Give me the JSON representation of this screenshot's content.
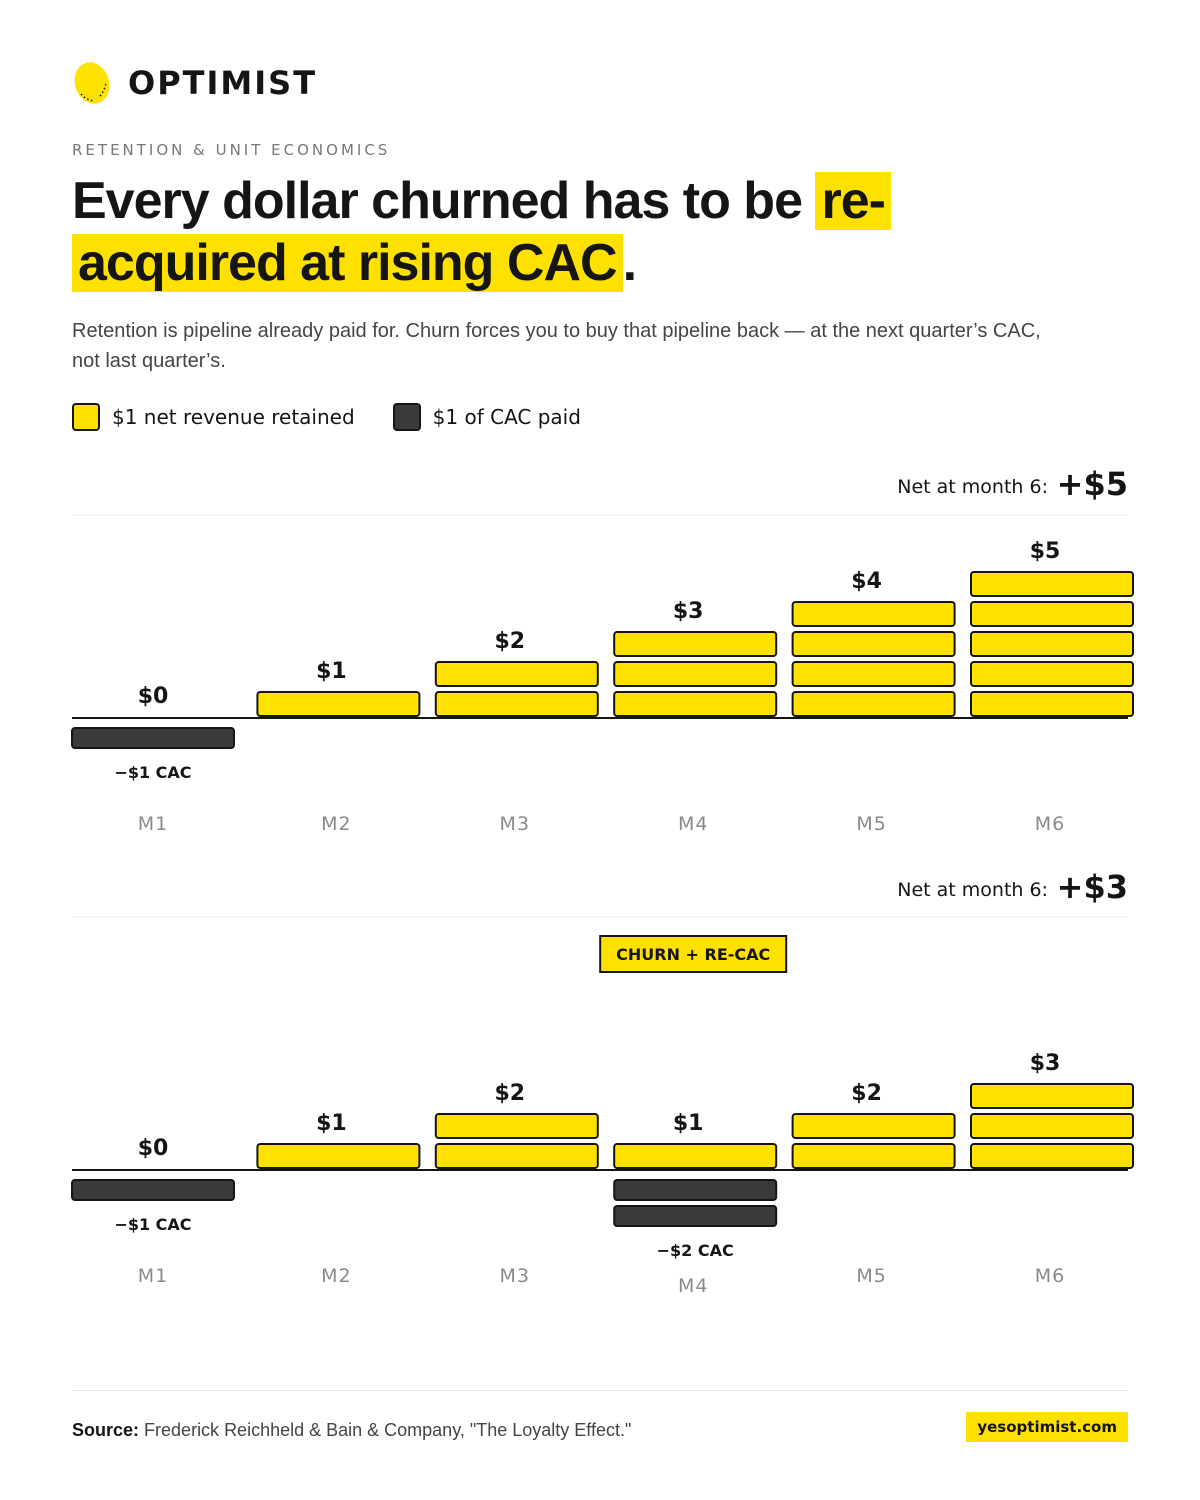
{
  "brand": {
    "name": "OPTIMIST",
    "logo_icon": "lemon-icon"
  },
  "eyebrow": "RETENTION & UNIT ECONOMICS",
  "headline": {
    "part1": "Every dollar churned has to be ",
    "highlight1": "re-",
    "highlight2": "acquired at rising CAC",
    "part2": "."
  },
  "subhead": "Retention is pipeline already paid for. Churn forces you to buy that pipeline back — at the next quarter’s CAC, not last quarter’s.",
  "legend": {
    "retained": "$1 net revenue retained",
    "cac": "$1 of CAC paid"
  },
  "colors": {
    "accent": "#ffe100",
    "cac": "#3a3a3a",
    "ink": "#151515",
    "muted": "#8a8a8a"
  },
  "chart_data": [
    {
      "type": "bar",
      "net_label": "Net at month 6:",
      "net_value": "+$5",
      "categories": [
        "M1",
        "M2",
        "M3",
        "M4",
        "M5",
        "M6"
      ],
      "retained_units": [
        0,
        1,
        2,
        3,
        4,
        5
      ],
      "cac_units": [
        1,
        0,
        0,
        0,
        0,
        0
      ],
      "value_labels": [
        "$0",
        "$1",
        "$2",
        "$3",
        "$4",
        "$5"
      ],
      "cac_labels": [
        "−$1 CAC",
        "",
        "",
        "",
        "",
        ""
      ],
      "annotation": "",
      "annotation_index": null
    },
    {
      "type": "bar",
      "net_label": "Net at month 6:",
      "net_value": "+$3",
      "categories": [
        "M1",
        "M2",
        "M3",
        "M4",
        "M5",
        "M6"
      ],
      "retained_units": [
        0,
        1,
        2,
        1,
        2,
        3
      ],
      "cac_units": [
        1,
        0,
        0,
        2,
        0,
        0
      ],
      "value_labels": [
        "$0",
        "$1",
        "$2",
        "$1",
        "$2",
        "$3"
      ],
      "cac_labels": [
        "−$1 CAC",
        "",
        "",
        "−$2 CAC",
        "",
        ""
      ],
      "annotation": "CHURN + RE-CAC",
      "annotation_index": 3
    }
  ],
  "footer": {
    "source_label": "Source:",
    "source_text": "Frederick Reichheld & Bain & Company, \"The Loyalty Effect.\"",
    "site": "yesoptimist.com"
  }
}
